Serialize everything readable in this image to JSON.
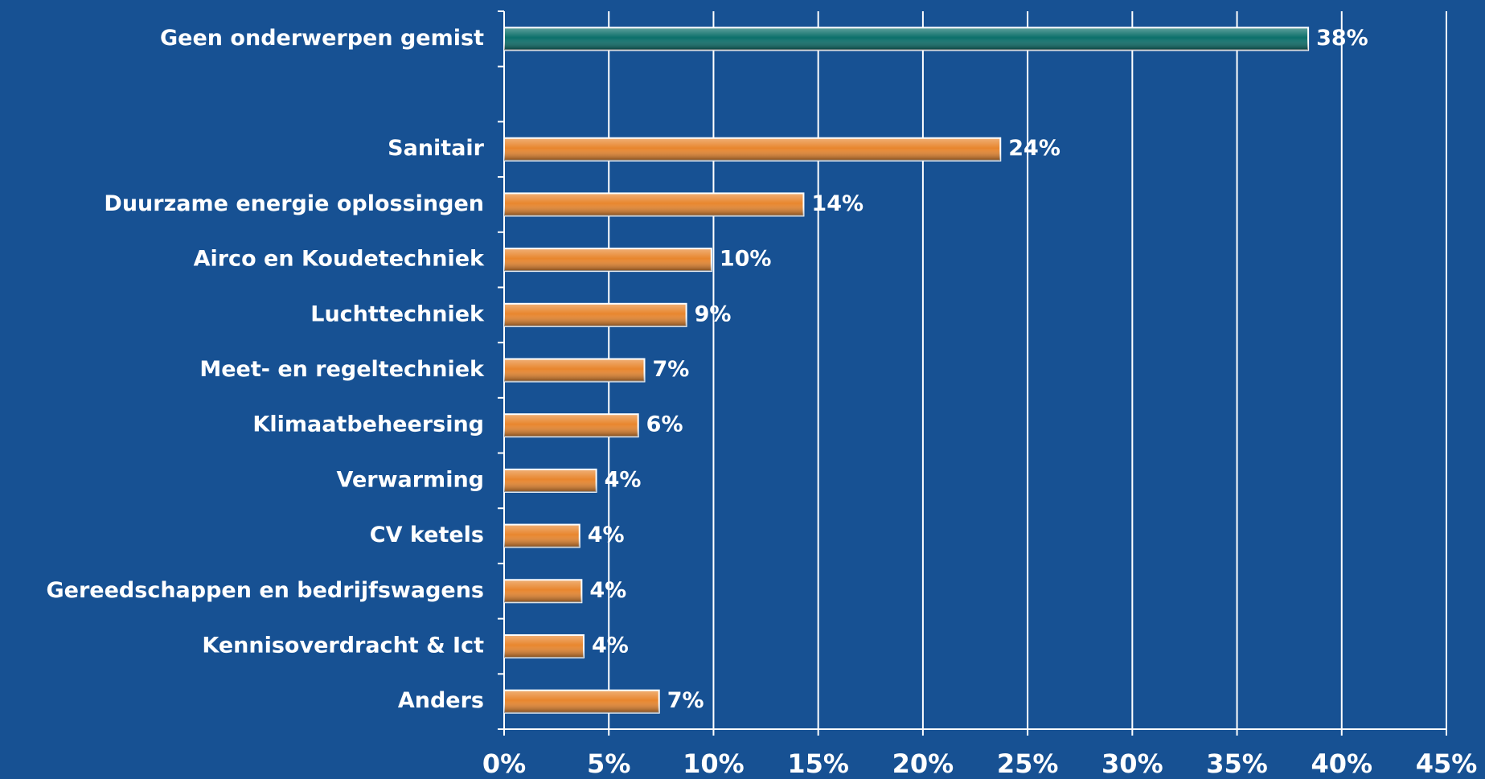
{
  "chart_data": {
    "type": "hbar",
    "categories": [
      "Geen onderwerpen gemist",
      null,
      "Sanitair",
      "Duurzame energie oplossingen",
      "Airco en Koudetechniek",
      "Luchttechniek",
      "Meet- en regeltechniek",
      "Klimaatbeheersing",
      "Verwarming",
      "CV ketels",
      "Gereedschappen en bedrijfswagens",
      "Kennisoverdracht & Ict",
      "Anders"
    ],
    "values": [
      38.4,
      null,
      23.7,
      14.3,
      9.9,
      8.7,
      6.7,
      6.4,
      4.4,
      3.6,
      3.7,
      3.8,
      7.4
    ],
    "value_labels": [
      "38%",
      null,
      "24%",
      "14%",
      "10%",
      "9%",
      "7%",
      "6%",
      "4%",
      "4%",
      "4%",
      "4%",
      "7%"
    ],
    "colors": [
      "#0b6f6a",
      null,
      "#e8862e",
      "#e8862e",
      "#e8862e",
      "#e8862e",
      "#e8862e",
      "#e8862e",
      "#e8862e",
      "#e8862e",
      "#e8862e",
      "#e8862e",
      "#e8862e"
    ],
    "xlim": [
      0,
      45
    ],
    "xticks": [
      {
        "value": 0,
        "label": "0%"
      },
      {
        "value": 5,
        "label": "5%"
      },
      {
        "value": 10,
        "label": "10%"
      },
      {
        "value": 15,
        "label": "15%"
      },
      {
        "value": 20,
        "label": "20%"
      },
      {
        "value": 25,
        "label": "25%"
      },
      {
        "value": 30,
        "label": "30%"
      },
      {
        "value": 35,
        "label": "35%"
      },
      {
        "value": 40,
        "label": "40%"
      },
      {
        "value": 45,
        "label": "45%"
      }
    ],
    "grid": true
  }
}
